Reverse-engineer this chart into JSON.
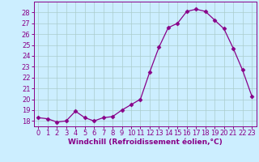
{
  "x": [
    0,
    1,
    2,
    3,
    4,
    5,
    6,
    7,
    8,
    9,
    10,
    11,
    12,
    13,
    14,
    15,
    16,
    17,
    18,
    19,
    20,
    21,
    22,
    23
  ],
  "y": [
    18.3,
    18.2,
    17.9,
    18.0,
    18.9,
    18.3,
    18.0,
    18.3,
    18.4,
    19.0,
    19.5,
    20.0,
    22.5,
    24.8,
    26.6,
    27.0,
    28.1,
    28.3,
    28.1,
    27.3,
    26.5,
    24.7,
    22.7,
    20.3
  ],
  "line_color": "#880088",
  "marker": "D",
  "marker_size": 2.5,
  "bg_color": "#cceeff",
  "grid_color": "#aacccc",
  "xlabel": "Windchill (Refroidissement éolien,°C)",
  "ylim": [
    17.5,
    29.0
  ],
  "yticks": [
    18,
    19,
    20,
    21,
    22,
    23,
    24,
    25,
    26,
    27,
    28
  ],
  "xlim": [
    -0.5,
    23.5
  ],
  "xticks": [
    0,
    1,
    2,
    3,
    4,
    5,
    6,
    7,
    8,
    9,
    10,
    11,
    12,
    13,
    14,
    15,
    16,
    17,
    18,
    19,
    20,
    21,
    22,
    23
  ],
  "xlabel_fontsize": 6.5,
  "tick_fontsize": 6.0,
  "axis_color": "#880088",
  "spine_color": "#880088"
}
